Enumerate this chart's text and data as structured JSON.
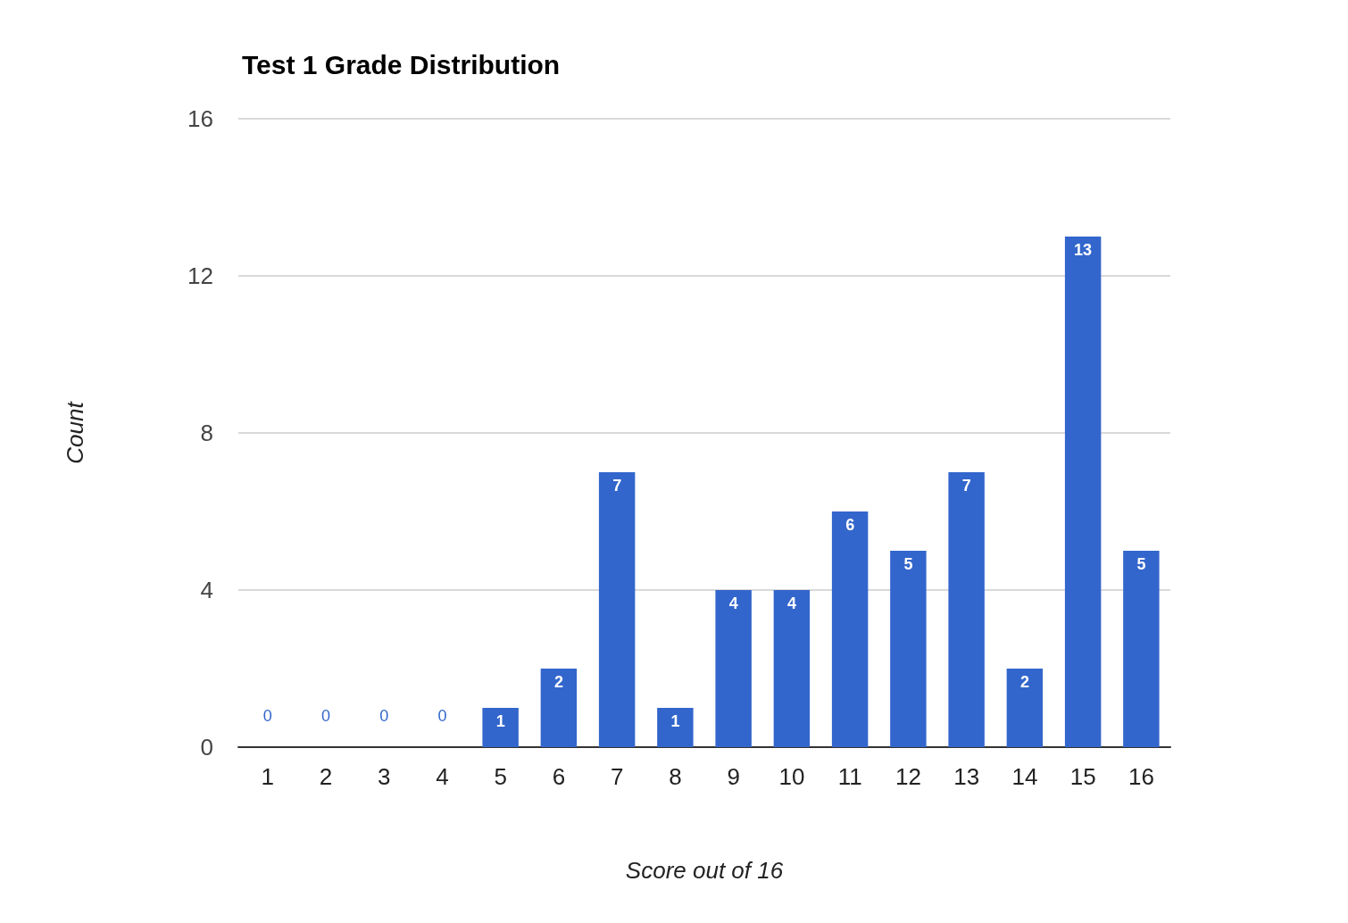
{
  "chart_data": {
    "type": "bar",
    "title": "Test 1 Grade Distribution",
    "xlabel": "Score out of 16",
    "ylabel": "Count",
    "categories": [
      "1",
      "2",
      "3",
      "4",
      "5",
      "6",
      "7",
      "8",
      "9",
      "10",
      "11",
      "12",
      "13",
      "14",
      "15",
      "16"
    ],
    "values": [
      0,
      0,
      0,
      0,
      1,
      2,
      7,
      1,
      4,
      4,
      6,
      5,
      7,
      2,
      13,
      5
    ],
    "color": "#3366cc",
    "ylim": [
      0,
      16
    ],
    "yticks": [
      0,
      4,
      8,
      12,
      16
    ],
    "grid": "y",
    "data_labels": true
  }
}
